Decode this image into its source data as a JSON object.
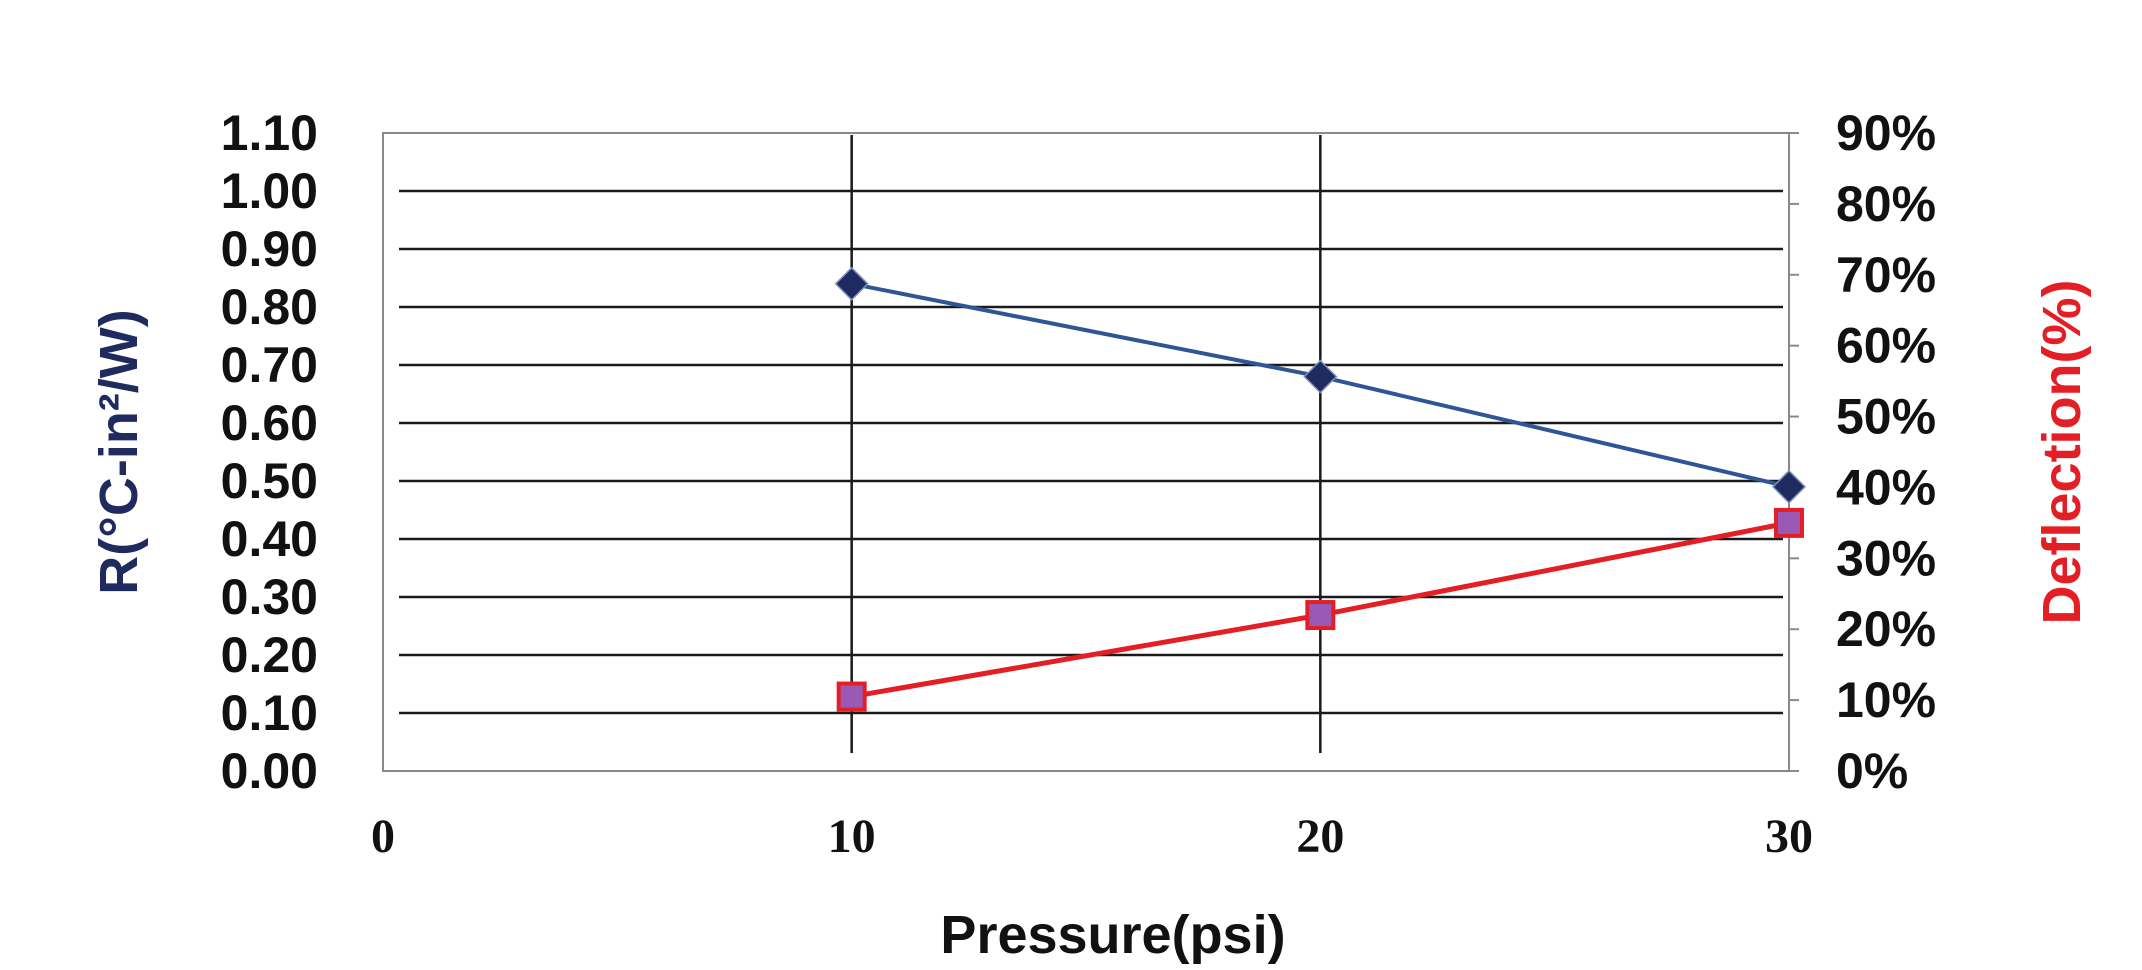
{
  "chart_data": {
    "type": "line",
    "xlabel": "Pressure(psi)",
    "ylabel_left": "R(°C-in²/W)",
    "ylabel_right": "Deflection(%)",
    "x_ticks": [
      "0",
      "10",
      "20",
      "30"
    ],
    "y_left_ticks": [
      "0.00",
      "0.10",
      "0.20",
      "0.30",
      "0.40",
      "0.50",
      "0.60",
      "0.70",
      "0.80",
      "0.90",
      "1.00",
      "1.10"
    ],
    "y_right_ticks": [
      "0%",
      "10%",
      "20%",
      "30%",
      "40%",
      "50%",
      "60%",
      "70%",
      "80%",
      "90%"
    ],
    "xlim": [
      0,
      30
    ],
    "ylim_left": [
      0,
      1.1
    ],
    "ylim_right": [
      0,
      90
    ],
    "grid": true,
    "series": [
      {
        "axis": "left",
        "x": [
          10,
          20,
          30
        ],
        "values": [
          0.84,
          0.68,
          0.49
        ],
        "color": "#2f5597",
        "marker": "diamond",
        "marker_fill": "#1f2a5e"
      },
      {
        "axis": "right",
        "x": [
          10,
          20,
          30
        ],
        "values": [
          10.5,
          22,
          35
        ],
        "color": "#e31e24",
        "marker": "square",
        "marker_fill": "#9b59b6"
      }
    ],
    "colors": {
      "left_axis_title": "#1f2a5e",
      "right_axis_title": "#e31e24"
    }
  }
}
